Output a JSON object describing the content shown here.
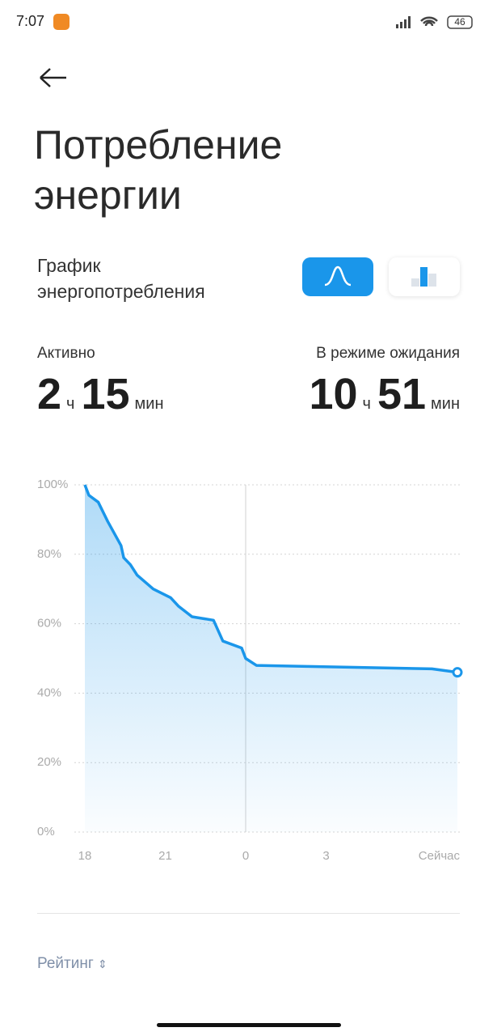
{
  "status_bar": {
    "time": "7:07",
    "battery": "46"
  },
  "header": {
    "title": "Потребление энергии"
  },
  "section": {
    "label": "График энергопотребления"
  },
  "stats": [
    {
      "label": "Активно",
      "hours": 2,
      "hours_unit": "ч",
      "minutes": 15,
      "minutes_unit": "мин"
    },
    {
      "label": "В режиме ожидания",
      "hours": 10,
      "hours_unit": "ч",
      "minutes": 51,
      "minutes_unit": "мин"
    }
  ],
  "chart_data": {
    "type": "line",
    "x": [
      18.0,
      18.15,
      18.5,
      18.85,
      19.35,
      19.45,
      19.7,
      19.95,
      20.55,
      21.2,
      21.5,
      22.0,
      22.8,
      23.15,
      23.85,
      24.0,
      24.4,
      26.3,
      30.95,
      31.9
    ],
    "series": [
      {
        "color": "#1a96ea",
        "values": [
          100,
          97,
          95,
          89.5,
          82.5,
          79,
          77,
          74,
          70,
          67.5,
          65,
          62,
          61,
          55,
          53,
          50,
          48,
          47.7,
          47,
          46
        ]
      }
    ],
    "xlim": [
      18,
      31.9
    ],
    "xticks": [
      18,
      21,
      {
        "value": 24,
        "label": "0"
      },
      {
        "value": 27,
        "label": "3"
      },
      {
        "value": 31.9,
        "label": "Сейчас"
      }
    ],
    "ylim": [
      0,
      100
    ],
    "yticks": [
      {
        "value": 0,
        "label": "0%"
      },
      {
        "value": 20,
        "label": "20%"
      },
      {
        "value": 40,
        "label": "40%"
      },
      {
        "value": 60,
        "label": "60%"
      },
      {
        "value": 80,
        "label": "80%"
      },
      {
        "value": 100,
        "label": "100%"
      }
    ],
    "grid": true,
    "xgrid_at": 24
  },
  "footer": {
    "sort_label": "Рейтинг"
  }
}
